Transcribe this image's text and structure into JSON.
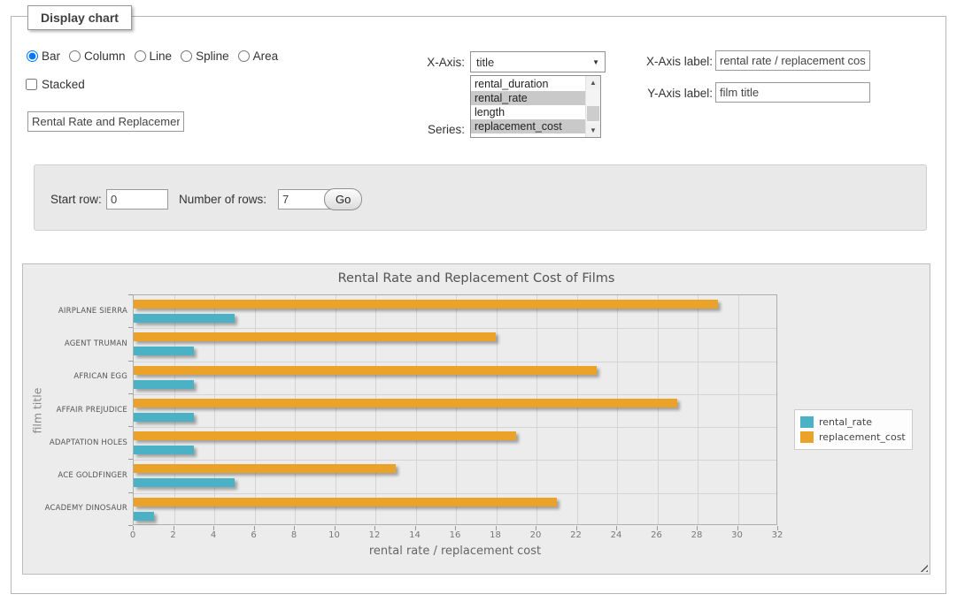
{
  "display_panel": {
    "legend": "Display chart"
  },
  "chart_type": {
    "options": [
      {
        "label": "Bar",
        "checked": true
      },
      {
        "label": "Column",
        "checked": false
      },
      {
        "label": "Line",
        "checked": false
      },
      {
        "label": "Spline",
        "checked": false
      },
      {
        "label": "Area",
        "checked": false
      }
    ]
  },
  "stacked": {
    "label": "Stacked",
    "checked": false
  },
  "chart_title_input": {
    "value": "Rental Rate and Replacement Cost of Films"
  },
  "x_axis_select": {
    "label": "X-Axis:",
    "selected": "title"
  },
  "series_select": {
    "label": "Series:",
    "options": [
      "rental_duration",
      "rental_rate",
      "length",
      "replacement_cost"
    ],
    "selected": [
      "rental_rate",
      "replacement_cost"
    ]
  },
  "x_axis_label_input": {
    "label": "X-Axis label:",
    "value": "rental rate / replacement cost"
  },
  "y_axis_label_input": {
    "label": "Y-Axis label:",
    "value": "film title"
  },
  "row_controls": {
    "start_row_label": "Start row:",
    "start_row_value": "0",
    "number_of_rows_label": "Number of rows:",
    "number_of_rows_value": "7",
    "go_label": "Go"
  },
  "chart_data": {
    "type": "bar",
    "orientation": "horizontal",
    "title": "Rental Rate and Replacement Cost of Films",
    "categories": [
      "AIRPLANE SIERRA",
      "AGENT TRUMAN",
      "AFRICAN EGG",
      "AFFAIR PREJUDICE",
      "ADAPTATION HOLES",
      "ACE GOLDFINGER",
      "ACADEMY DINOSAUR"
    ],
    "series": [
      {
        "name": "rental_rate",
        "color": "#4bb2c5",
        "values": [
          4.99,
          2.99,
          2.99,
          2.99,
          2.99,
          4.99,
          0.99
        ]
      },
      {
        "name": "replacement_cost",
        "color": "#eaa228",
        "values": [
          28.99,
          17.99,
          22.99,
          26.99,
          18.99,
          12.99,
          20.99
        ]
      }
    ],
    "xlabel": "rental rate / replacement cost",
    "ylabel": "film title",
    "xlim": [
      0,
      32
    ],
    "x_ticks": [
      0,
      2,
      4,
      6,
      8,
      10,
      12,
      14,
      16,
      18,
      20,
      22,
      24,
      26,
      28,
      30,
      32
    ],
    "grid": true,
    "legend_position": "right-outside"
  }
}
